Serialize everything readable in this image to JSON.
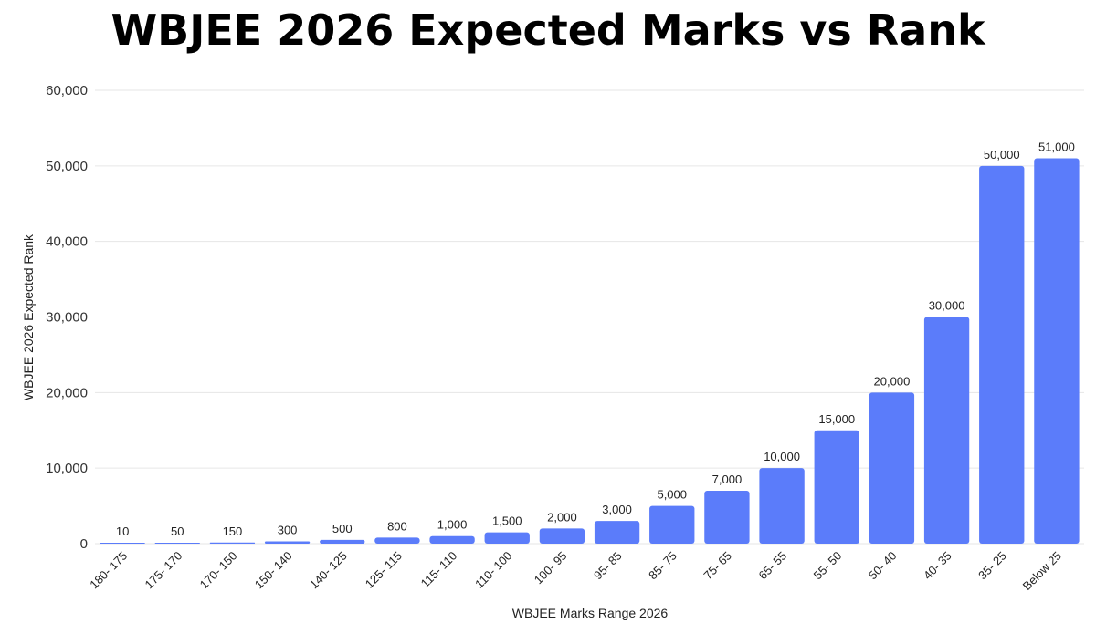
{
  "chart_data": {
    "type": "bar",
    "title": "WBJEE 2026 Expected Marks vs Rank",
    "xlabel": "WBJEE Marks Range 2026",
    "ylabel": "WBJEE 2026 Expected Rank",
    "ylim": [
      0,
      60000
    ],
    "yticks": [
      0,
      10000,
      20000,
      30000,
      40000,
      50000,
      60000
    ],
    "ytick_labels": [
      "0",
      "10,000",
      "20,000",
      "30,000",
      "40,000",
      "50,000",
      "60,000"
    ],
    "grid": true,
    "bar_color": "#5b7cfa",
    "categories": [
      "180- 175",
      "175- 170",
      "170- 150",
      "150- 140",
      "140- 125",
      "125- 115",
      "115- 110",
      "110- 100",
      "100- 95",
      "95- 85",
      "85- 75",
      "75- 65",
      "65- 55",
      "55- 50",
      "50- 40",
      "40- 35",
      "35- 25",
      "Below 25"
    ],
    "values": [
      10,
      50,
      150,
      300,
      500,
      800,
      1000,
      1500,
      2000,
      3000,
      5000,
      7000,
      10000,
      15000,
      20000,
      30000,
      50000,
      51000
    ],
    "value_labels": [
      "10",
      "50",
      "150",
      "300",
      "500",
      "800",
      "1,000",
      "1,500",
      "2,000",
      "3,000",
      "5,000",
      "7,000",
      "10,000",
      "15,000",
      "20,000",
      "30,000",
      "50,000",
      "51,000"
    ]
  }
}
